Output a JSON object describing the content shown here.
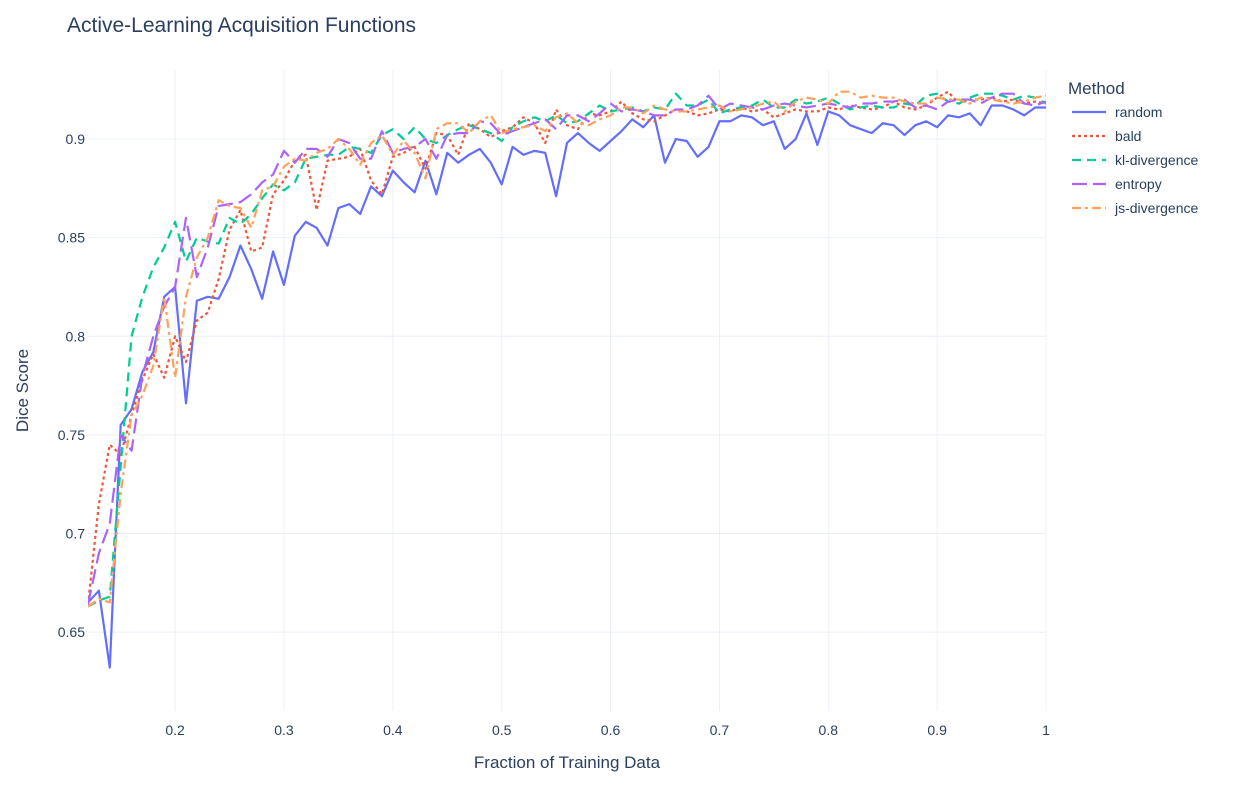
{
  "title": "Active-Learning Acquisition Functions",
  "chart_data": {
    "type": "line",
    "title": "Active-Learning Acquisition Functions",
    "xlabel": "Fraction of Training Data",
    "ylabel": "Dice Score",
    "xlim": [
      0.12,
      1.0
    ],
    "ylim": [
      0.61,
      0.935
    ],
    "x_ticks": [
      0.2,
      0.3,
      0.4,
      0.5,
      0.6,
      0.7,
      0.8,
      0.9,
      1.0
    ],
    "x_tick_labels": [
      "0.2",
      "0.3",
      "0.4",
      "0.5",
      "0.6",
      "0.7",
      "0.8",
      "0.9",
      "1"
    ],
    "y_ticks": [
      0.65,
      0.7,
      0.75,
      0.8,
      0.85,
      0.9
    ],
    "y_tick_labels": [
      "0.65",
      "0.7",
      "0.75",
      "0.8",
      "0.85",
      "0.9"
    ],
    "grid": true,
    "legend": {
      "title": "Method",
      "placement": "top-right, outside plot"
    },
    "x_start": 0.12,
    "x_step": 0.01,
    "series": [
      {
        "name": "random",
        "color": "#636efa",
        "dash": "solid",
        "values": [
          0.665,
          0.671,
          0.632,
          0.755,
          0.763,
          0.782,
          0.792,
          0.82,
          0.825,
          0.766,
          0.818,
          0.82,
          0.819,
          0.83,
          0.846,
          0.834,
          0.819,
          0.843,
          0.826,
          0.851,
          0.858,
          0.855,
          0.846,
          0.865,
          0.867,
          0.862,
          0.876,
          0.871,
          0.884,
          0.878,
          0.873,
          0.889,
          0.872,
          0.893,
          0.888,
          0.892,
          0.895,
          0.888,
          0.877,
          0.896,
          0.892,
          0.894,
          0.893,
          0.871,
          0.898,
          0.903,
          0.898,
          0.894,
          0.899,
          0.904,
          0.91,
          0.906,
          0.912,
          0.888,
          0.9,
          0.899,
          0.891,
          0.896,
          0.909,
          0.909,
          0.912,
          0.911,
          0.907,
          0.909,
          0.895,
          0.9,
          0.913,
          0.897,
          0.914,
          0.912,
          0.907,
          0.905,
          0.903,
          0.908,
          0.907,
          0.902,
          0.907,
          0.909,
          0.906,
          0.912,
          0.911,
          0.913,
          0.907,
          0.917,
          0.917,
          0.915,
          0.912,
          0.916,
          0.916
        ]
      },
      {
        "name": "bald",
        "color": "#ef553b",
        "dash": "dot",
        "values": [
          0.664,
          0.715,
          0.745,
          0.74,
          0.76,
          0.778,
          0.791,
          0.779,
          0.8,
          0.787,
          0.808,
          0.812,
          0.829,
          0.854,
          0.864,
          0.843,
          0.845,
          0.872,
          0.879,
          0.889,
          0.892,
          0.864,
          0.889,
          0.89,
          0.891,
          0.895,
          0.879,
          0.872,
          0.891,
          0.893,
          0.896,
          0.885,
          0.903,
          0.902,
          0.892,
          0.908,
          0.905,
          0.901,
          0.904,
          0.906,
          0.911,
          0.908,
          0.898,
          0.915,
          0.907,
          0.905,
          0.913,
          0.912,
          0.914,
          0.919,
          0.913,
          0.91,
          0.909,
          0.912,
          0.915,
          0.914,
          0.912,
          0.913,
          0.915,
          0.914,
          0.916,
          0.914,
          0.915,
          0.911,
          0.913,
          0.915,
          0.914,
          0.914,
          0.916,
          0.915,
          0.917,
          0.916,
          0.915,
          0.916,
          0.919,
          0.916,
          0.915,
          0.917,
          0.921,
          0.924,
          0.918,
          0.92,
          0.92,
          0.921,
          0.919,
          0.92,
          0.918,
          0.919,
          0.918
        ]
      },
      {
        "name": "kl-divergence",
        "color": "#00cc96",
        "dash": "dash",
        "values": [
          0.663,
          0.666,
          0.668,
          0.734,
          0.8,
          0.82,
          0.835,
          0.845,
          0.858,
          0.838,
          0.85,
          0.848,
          0.847,
          0.86,
          0.857,
          0.862,
          0.87,
          0.877,
          0.874,
          0.878,
          0.89,
          0.891,
          0.892,
          0.892,
          0.896,
          0.895,
          0.893,
          0.902,
          0.905,
          0.9,
          0.906,
          0.9,
          0.898,
          0.902,
          0.905,
          0.907,
          0.905,
          0.903,
          0.899,
          0.906,
          0.909,
          0.911,
          0.909,
          0.912,
          0.908,
          0.909,
          0.913,
          0.917,
          0.914,
          0.915,
          0.916,
          0.914,
          0.916,
          0.915,
          0.923,
          0.917,
          0.917,
          0.92,
          0.913,
          0.915,
          0.916,
          0.917,
          0.92,
          0.916,
          0.916,
          0.92,
          0.918,
          0.919,
          0.921,
          0.918,
          0.915,
          0.916,
          0.917,
          0.916,
          0.916,
          0.918,
          0.917,
          0.922,
          0.923,
          0.919,
          0.918,
          0.921,
          0.923,
          0.923,
          0.922,
          0.92,
          0.922,
          0.921,
          0.918
        ]
      },
      {
        "name": "entropy",
        "color": "#ab63fa",
        "dash": "longdash",
        "values": [
          0.664,
          0.69,
          0.705,
          0.75,
          0.742,
          0.78,
          0.8,
          0.815,
          0.825,
          0.86,
          0.83,
          0.845,
          0.866,
          0.867,
          0.868,
          0.872,
          0.878,
          0.882,
          0.894,
          0.888,
          0.895,
          0.895,
          0.891,
          0.9,
          0.898,
          0.89,
          0.89,
          0.904,
          0.893,
          0.895,
          0.896,
          0.9,
          0.89,
          0.902,
          0.903,
          0.903,
          0.909,
          0.908,
          0.902,
          0.904,
          0.906,
          0.908,
          0.91,
          0.905,
          0.912,
          0.912,
          0.909,
          0.913,
          0.918,
          0.914,
          0.915,
          0.914,
          0.912,
          0.912,
          0.915,
          0.915,
          0.917,
          0.922,
          0.915,
          0.918,
          0.917,
          0.916,
          0.915,
          0.917,
          0.918,
          0.917,
          0.916,
          0.917,
          0.918,
          0.917,
          0.916,
          0.918,
          0.918,
          0.919,
          0.919,
          0.92,
          0.916,
          0.917,
          0.915,
          0.919,
          0.92,
          0.92,
          0.918,
          0.921,
          0.923,
          0.923,
          0.918,
          0.917,
          0.919
        ]
      },
      {
        "name": "js-divergence",
        "color": "#ffa15a",
        "dash": "dashdot",
        "values": [
          0.663,
          0.667,
          0.665,
          0.72,
          0.76,
          0.77,
          0.785,
          0.82,
          0.779,
          0.82,
          0.84,
          0.85,
          0.869,
          0.866,
          0.865,
          0.855,
          0.874,
          0.876,
          0.886,
          0.89,
          0.889,
          0.893,
          0.895,
          0.9,
          0.895,
          0.887,
          0.898,
          0.902,
          0.892,
          0.899,
          0.893,
          0.88,
          0.905,
          0.908,
          0.908,
          0.903,
          0.909,
          0.912,
          0.903,
          0.905,
          0.906,
          0.907,
          0.904,
          0.911,
          0.913,
          0.908,
          0.907,
          0.91,
          0.912,
          0.916,
          0.916,
          0.913,
          0.917,
          0.915,
          0.914,
          0.914,
          0.915,
          0.916,
          0.917,
          0.914,
          0.915,
          0.916,
          0.918,
          0.919,
          0.914,
          0.919,
          0.921,
          0.92,
          0.918,
          0.924,
          0.924,
          0.921,
          0.922,
          0.921,
          0.921,
          0.919,
          0.918,
          0.918,
          0.921,
          0.92,
          0.92,
          0.918,
          0.921,
          0.92,
          0.919,
          0.918,
          0.919,
          0.921,
          0.922
        ]
      }
    ]
  }
}
